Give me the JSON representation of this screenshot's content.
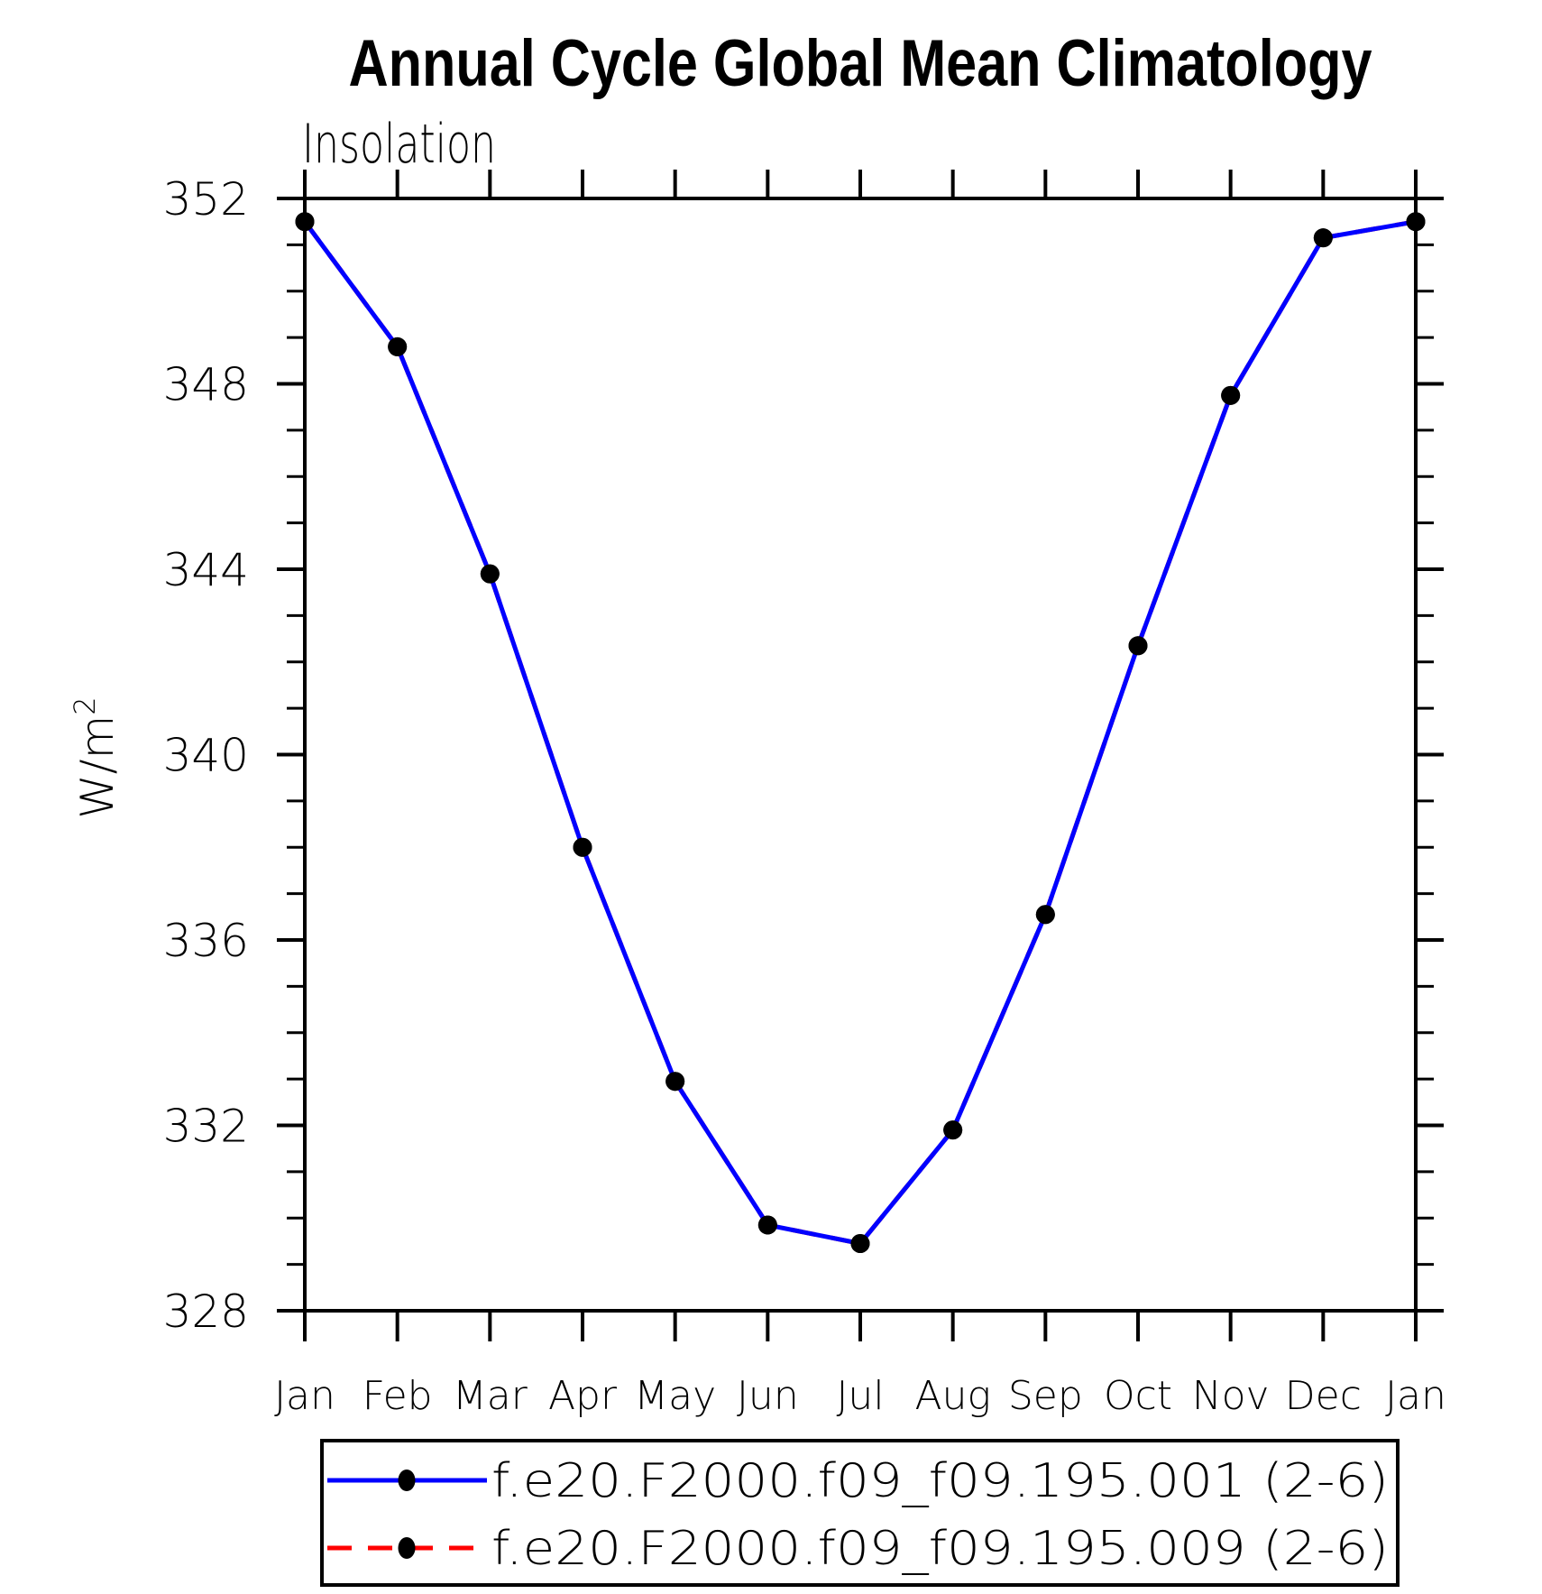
{
  "chart_data": {
    "type": "line",
    "title": "Annual Cycle Global Mean Climatology",
    "subtitle": "Insolation",
    "ylabel": "W/m²",
    "ylabel_parts": {
      "base": "W/m",
      "sup": "2"
    },
    "categories": [
      "Jan",
      "Feb",
      "Mar",
      "Apr",
      "May",
      "Jun",
      "Jul",
      "Aug",
      "Sep",
      "Oct",
      "Nov",
      "Dec",
      "Jan"
    ],
    "ylim": [
      328,
      352
    ],
    "ytick_major_step": 4,
    "ytick_minor_step": 1,
    "ytick_labels": [
      "352",
      "348",
      "344",
      "340",
      "336",
      "332",
      "328"
    ],
    "grid": false,
    "legend_position": "bottom",
    "axis_color": "#000000",
    "marker_color": "#000000",
    "series": [
      {
        "name": "f.e20.F2000.f09_f09.195.001 (2-6)",
        "color": "#0000ff",
        "line_style": "solid",
        "marker": "filled-circle",
        "values": [
          351.5,
          348.8,
          343.9,
          338.0,
          332.95,
          329.85,
          329.45,
          331.9,
          336.55,
          342.35,
          347.75,
          351.15,
          351.5
        ]
      },
      {
        "name": "f.e20.F2000.f09_f09.195.009 (2-6)",
        "color": "#ff0000",
        "line_style": "dashed",
        "marker": "filled-circle",
        "values": [
          351.5,
          348.8,
          343.9,
          338.0,
          332.95,
          329.85,
          329.45,
          331.9,
          336.55,
          342.35,
          347.75,
          351.15,
          351.5
        ]
      }
    ]
  }
}
